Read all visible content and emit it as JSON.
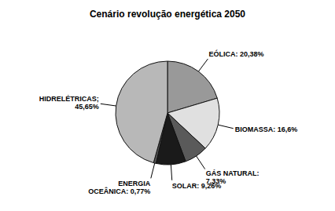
{
  "chart_data": {
    "type": "pie",
    "title": "Cenário revolução energética 2050",
    "categories": [
      "EÓLICA: 20,38%",
      "BIOMASSA: 16,6%",
      "GÁS NATURAL:\n7,33%",
      "SOLAR: 9,26%",
      "ENERGIA\nOCEÂNICA: 0,77%",
      "HIDRELÉTRICAS;\n45,65%"
    ],
    "values": [
      20.38,
      16.6,
      7.33,
      9.26,
      0.77,
      45.65
    ],
    "colors": [
      "#999999",
      "#e0e0e0",
      "#5a5a5a",
      "#1a1a1a",
      "#555555",
      "#b8b8b8"
    ],
    "annotations": [
      "SOLAR: 9,26%"
    ]
  }
}
